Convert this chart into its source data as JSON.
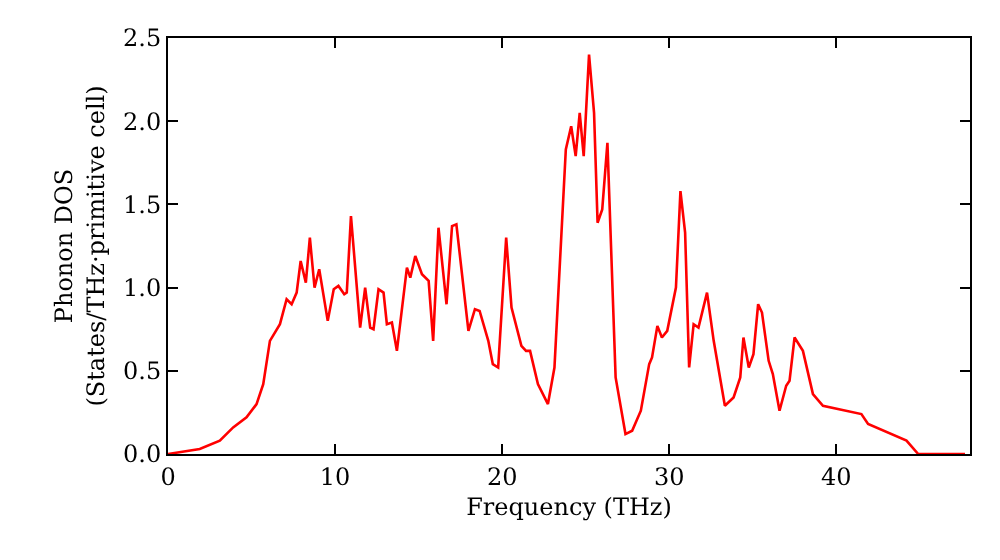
{
  "chart_data": {
    "type": "line",
    "xlabel": "Frequency (THz)",
    "ylabel": "Phonon DOS\n(States/THz·primitive cell)",
    "xlim": [
      0,
      48
    ],
    "xticks": [
      0,
      10,
      20,
      30,
      40
    ],
    "ylim": [
      0,
      2.5
    ],
    "yticks": [
      {
        "value": 0,
        "label": "0.0"
      },
      {
        "value": 0.5,
        "label": "0.5"
      },
      {
        "value": 1,
        "label": "1.0"
      },
      {
        "value": 1.5,
        "label": "1.5"
      },
      {
        "value": 2,
        "label": "2.0"
      },
      {
        "value": 2.5,
        "label": "2.5"
      }
    ],
    "marker": "none",
    "line_style": "solid",
    "series": [
      {
        "color": "#ff0000",
        "x": [
          0,
          1.9,
          3.1,
          3.9,
          4.7,
          5.3,
          5.7,
          6.1,
          6.7,
          7.1,
          7.4,
          7.7,
          7.94,
          8.25,
          8.49,
          8.77,
          9.05,
          9.56,
          9.92,
          10.2,
          10.55,
          10.7,
          10.95,
          11.5,
          11.8,
          12.1,
          12.3,
          12.6,
          12.9,
          13.1,
          13.4,
          13.7,
          14.3,
          14.5,
          14.8,
          15.2,
          15.6,
          15.87,
          16.19,
          16.67,
          17.0,
          17.26,
          17.98,
          18.37,
          18.65,
          19.17,
          19.44,
          19.76,
          20.24,
          20.56,
          21.15,
          21.43,
          21.67,
          22.14,
          22.74,
          23.13,
          23.81,
          24.13,
          24.4,
          24.64,
          24.88,
          25.2,
          25.5,
          25.71,
          25.99,
          26.3,
          26.79,
          27.38,
          27.78,
          28.3,
          28.8,
          28.97,
          29.29,
          29.56,
          29.88,
          30.4,
          30.67,
          30.95,
          31.19,
          31.46,
          31.75,
          32.26,
          32.66,
          33.33,
          33.85,
          34.25,
          34.44,
          34.76,
          35.04,
          35.32,
          35.55,
          35.95,
          36.2,
          36.6,
          37.0,
          37.2,
          37.5,
          38.0,
          38.6,
          39.2,
          41.5,
          41.9,
          44.2,
          44.9,
          47.7
        ],
        "values": [
          0,
          0.03,
          0.08,
          0.16,
          0.22,
          0.3,
          0.42,
          0.68,
          0.78,
          0.93,
          0.9,
          0.97,
          1.16,
          1.03,
          1.3,
          1.0,
          1.11,
          0.8,
          0.99,
          1.01,
          0.96,
          0.97,
          1.43,
          0.76,
          1.0,
          0.76,
          0.75,
          0.99,
          0.97,
          0.78,
          0.79,
          0.62,
          1.12,
          1.06,
          1.19,
          1.08,
          1.04,
          0.68,
          1.36,
          0.9,
          1.37,
          1.38,
          0.74,
          0.87,
          0.86,
          0.68,
          0.54,
          0.52,
          1.3,
          0.88,
          0.65,
          0.62,
          0.62,
          0.42,
          0.3,
          0.52,
          1.83,
          1.97,
          1.79,
          2.05,
          1.79,
          2.4,
          2.05,
          1.39,
          1.47,
          1.87,
          0.46,
          0.12,
          0.14,
          0.26,
          0.54,
          0.58,
          0.77,
          0.7,
          0.74,
          1.0,
          1.58,
          1.33,
          0.52,
          0.78,
          0.76,
          0.97,
          0.68,
          0.29,
          0.34,
          0.46,
          0.7,
          0.52,
          0.6,
          0.9,
          0.85,
          0.56,
          0.48,
          0.26,
          0.41,
          0.44,
          0.7,
          0.62,
          0.36,
          0.29,
          0.24,
          0.18,
          0.08,
          0,
          0
        ]
      }
    ]
  }
}
